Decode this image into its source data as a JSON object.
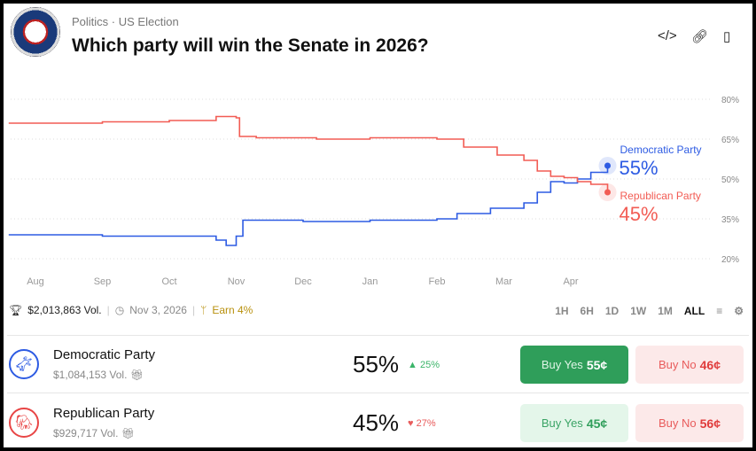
{
  "header": {
    "category": "Politics",
    "subcategory": "US Election",
    "title": "Which party will win the Senate in 2026?"
  },
  "meta": {
    "volume": "$2,013,863 Vol.",
    "end_date": "Nov 3, 2026",
    "earn": "Earn 4%"
  },
  "ranges": [
    "1H",
    "6H",
    "1D",
    "1W",
    "1M",
    "ALL"
  ],
  "active_range": "ALL",
  "outcomes": [
    {
      "name": "Democratic Party",
      "volume": "$1,084,153 Vol.",
      "percent": "55%",
      "change": "25%",
      "direction": "up",
      "buy_yes": "Buy Yes",
      "yes_price": "55¢",
      "buy_no": "Buy No",
      "no_price": "46¢",
      "color": "#2d5be3"
    },
    {
      "name": "Republican Party",
      "volume": "$929,717 Vol.",
      "percent": "45%",
      "change": "27%",
      "direction": "down",
      "buy_yes": "Buy Yes",
      "yes_price": "45¢",
      "buy_no": "Buy No",
      "no_price": "56¢",
      "color": "#e84545"
    }
  ],
  "chart_data": {
    "type": "line",
    "x_unit": "months since Aug 1",
    "xticks": [
      "Aug",
      "Sep",
      "Oct",
      "Nov",
      "Dec",
      "Jan",
      "Feb",
      "Mar",
      "Apr"
    ],
    "yticks": [
      "80%",
      "65%",
      "50%",
      "35%",
      "20%"
    ],
    "ylim": [
      20,
      80
    ],
    "series": [
      {
        "name": "Democratic Party",
        "label": "55%",
        "color": "#2d5be3",
        "x": [
          -0.4,
          1,
          2,
          2.7,
          2.85,
          3.0,
          3.1,
          4,
          5,
          6,
          6.3,
          6.8,
          7.3,
          7.5,
          7.7,
          7.9,
          8.1,
          8.3,
          8.55
        ],
        "y": [
          29,
          28.5,
          28.5,
          27,
          25,
          28.5,
          34.5,
          34,
          34.5,
          35,
          37,
          39,
          41,
          45,
          49,
          48.5,
          50,
          52.5,
          55
        ]
      },
      {
        "name": "Republican Party",
        "label": "45%",
        "color": "#f25c54",
        "x": [
          -0.4,
          1,
          2,
          2.7,
          3.0,
          3.05,
          3.3,
          4,
          4.2,
          5,
          6,
          6.4,
          6.9,
          7.3,
          7.5,
          7.7,
          7.9,
          8.1,
          8.3,
          8.55
        ],
        "y": [
          71,
          71.5,
          72,
          73.5,
          73,
          66,
          65.5,
          65.5,
          65,
          65.5,
          65,
          62,
          59,
          57,
          53,
          51,
          50.5,
          49,
          48,
          45
        ]
      }
    ]
  }
}
